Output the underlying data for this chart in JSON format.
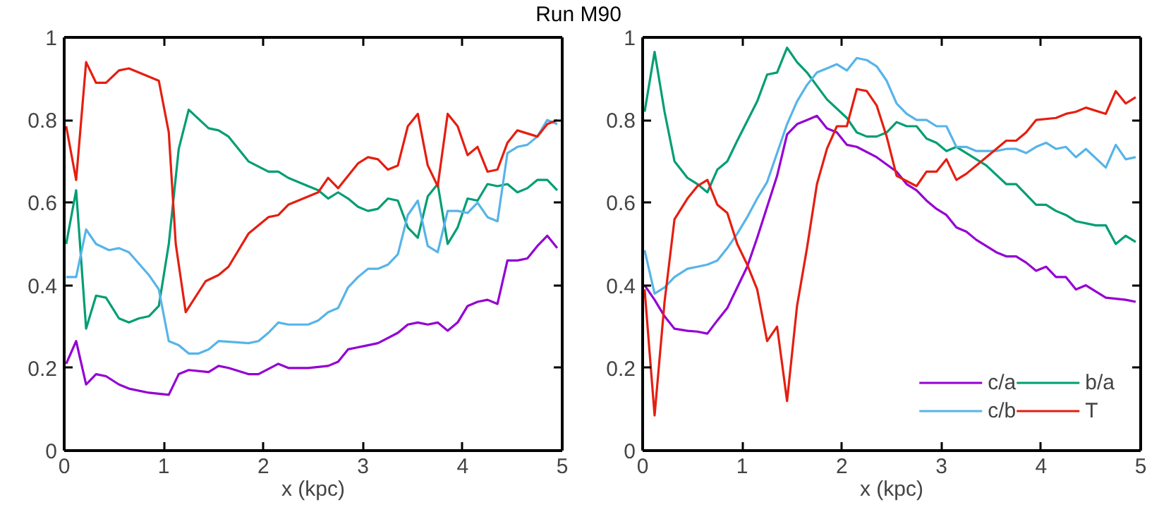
{
  "chart_data": [
    {
      "type": "line",
      "title": "Run M90",
      "xlabel": "x (kpc)",
      "xlim": [
        0,
        5
      ],
      "ylim": [
        0,
        1
      ],
      "xticks": [
        0,
        1,
        2,
        3,
        4,
        5
      ],
      "yticks": [
        0,
        0.2,
        0.4,
        0.6,
        0.8,
        1
      ],
      "grid": false,
      "legend": false,
      "series": [
        {
          "color": "#9400d3",
          "x": [
            0.02,
            0.12,
            0.22,
            0.32,
            0.42,
            0.55,
            0.65,
            0.85,
            1.05,
            1.15,
            1.25,
            1.45,
            1.55,
            1.65,
            1.85,
            1.95,
            2.15,
            2.25,
            2.45,
            2.65,
            2.75,
            2.85,
            2.95,
            3.05,
            3.15,
            3.35,
            3.45,
            3.55,
            3.65,
            3.75,
            3.85,
            3.95,
            4.05,
            4.15,
            4.25,
            4.35,
            4.45,
            4.55,
            4.65,
            4.75,
            4.85,
            4.95
          ],
          "values": [
            0.21,
            0.265,
            0.16,
            0.185,
            0.18,
            0.16,
            0.15,
            0.14,
            0.135,
            0.185,
            0.195,
            0.19,
            0.205,
            0.2,
            0.185,
            0.185,
            0.21,
            0.2,
            0.2,
            0.205,
            0.215,
            0.245,
            0.25,
            0.255,
            0.26,
            0.285,
            0.305,
            0.31,
            0.305,
            0.31,
            0.29,
            0.31,
            0.35,
            0.36,
            0.365,
            0.355,
            0.46,
            0.46,
            0.465,
            0.495,
            0.52,
            0.49
          ]
        },
        {
          "color": "#009e73",
          "x": [
            0.02,
            0.12,
            0.22,
            0.32,
            0.42,
            0.55,
            0.65,
            0.75,
            0.85,
            0.95,
            1.05,
            1.15,
            1.25,
            1.45,
            1.55,
            1.65,
            1.85,
            2.05,
            2.15,
            2.25,
            2.45,
            2.55,
            2.65,
            2.75,
            2.85,
            2.95,
            3.05,
            3.15,
            3.25,
            3.35,
            3.45,
            3.55,
            3.65,
            3.75,
            3.85,
            3.95,
            4.05,
            4.15,
            4.25,
            4.35,
            4.45,
            4.55,
            4.65,
            4.75,
            4.85,
            4.95
          ],
          "values": [
            0.5,
            0.63,
            0.295,
            0.375,
            0.37,
            0.32,
            0.31,
            0.32,
            0.325,
            0.35,
            0.5,
            0.73,
            0.825,
            0.78,
            0.775,
            0.76,
            0.7,
            0.675,
            0.675,
            0.66,
            0.64,
            0.63,
            0.61,
            0.625,
            0.61,
            0.59,
            0.58,
            0.585,
            0.61,
            0.605,
            0.54,
            0.515,
            0.615,
            0.645,
            0.5,
            0.54,
            0.61,
            0.605,
            0.645,
            0.64,
            0.645,
            0.625,
            0.635,
            0.655,
            0.655,
            0.63
          ]
        },
        {
          "color": "#56b4e9",
          "x": [
            0.02,
            0.12,
            0.22,
            0.32,
            0.45,
            0.55,
            0.65,
            0.85,
            0.95,
            1.05,
            1.15,
            1.25,
            1.35,
            1.45,
            1.55,
            1.85,
            1.95,
            2.05,
            2.15,
            2.25,
            2.45,
            2.55,
            2.65,
            2.75,
            2.85,
            2.95,
            3.05,
            3.15,
            3.25,
            3.35,
            3.45,
            3.55,
            3.65,
            3.75,
            3.85,
            3.95,
            4.05,
            4.15,
            4.25,
            4.35,
            4.45,
            4.55,
            4.65,
            4.75,
            4.85,
            4.95
          ],
          "values": [
            0.42,
            0.42,
            0.535,
            0.5,
            0.485,
            0.49,
            0.48,
            0.425,
            0.39,
            0.265,
            0.255,
            0.235,
            0.235,
            0.245,
            0.265,
            0.26,
            0.265,
            0.285,
            0.31,
            0.305,
            0.305,
            0.315,
            0.335,
            0.345,
            0.395,
            0.42,
            0.44,
            0.44,
            0.45,
            0.475,
            0.57,
            0.605,
            0.495,
            0.48,
            0.58,
            0.58,
            0.575,
            0.6,
            0.565,
            0.555,
            0.72,
            0.735,
            0.74,
            0.76,
            0.8,
            0.79
          ]
        },
        {
          "color": "#e51e10",
          "x": [
            0.02,
            0.12,
            0.22,
            0.32,
            0.42,
            0.55,
            0.65,
            0.8,
            0.95,
            1.05,
            1.12,
            1.22,
            1.42,
            1.55,
            1.65,
            1.85,
            2.05,
            2.15,
            2.25,
            2.55,
            2.65,
            2.75,
            2.95,
            3.05,
            3.15,
            3.25,
            3.35,
            3.45,
            3.55,
            3.65,
            3.75,
            3.85,
            3.95,
            4.05,
            4.15,
            4.25,
            4.35,
            4.45,
            4.55,
            4.75,
            4.85,
            4.95
          ],
          "values": [
            0.785,
            0.655,
            0.94,
            0.89,
            0.89,
            0.92,
            0.925,
            0.91,
            0.895,
            0.77,
            0.5,
            0.335,
            0.41,
            0.425,
            0.445,
            0.525,
            0.565,
            0.57,
            0.595,
            0.625,
            0.66,
            0.635,
            0.695,
            0.71,
            0.705,
            0.68,
            0.69,
            0.785,
            0.815,
            0.69,
            0.64,
            0.815,
            0.785,
            0.715,
            0.735,
            0.675,
            0.68,
            0.745,
            0.775,
            0.76,
            0.79,
            0.8
          ]
        }
      ]
    },
    {
      "type": "line",
      "xlabel": "x (kpc)",
      "xlim": [
        0,
        5
      ],
      "ylim": [
        0,
        1
      ],
      "xticks": [
        0,
        1,
        2,
        3,
        4,
        5
      ],
      "yticks": [
        0,
        0.2,
        0.4,
        0.6,
        0.8,
        1
      ],
      "grid": false,
      "legend": "bottom right",
      "series": [
        {
          "name": "c/a",
          "color": "#9400d3",
          "x": [
            0.02,
            0.12,
            0.22,
            0.32,
            0.45,
            0.55,
            0.65,
            0.75,
            0.85,
            0.95,
            1.05,
            1.15,
            1.25,
            1.35,
            1.45,
            1.55,
            1.65,
            1.75,
            1.85,
            1.95,
            2.05,
            2.15,
            2.35,
            2.55,
            2.65,
            2.75,
            2.85,
            2.95,
            3.05,
            3.15,
            3.25,
            3.35,
            3.55,
            3.65,
            3.75,
            3.85,
            3.95,
            4.05,
            4.15,
            4.25,
            4.35,
            4.45,
            4.55,
            4.65,
            4.85,
            4.95
          ],
          "values": [
            0.4,
            0.365,
            0.325,
            0.295,
            0.29,
            0.288,
            0.283,
            0.315,
            0.345,
            0.395,
            0.445,
            0.515,
            0.59,
            0.665,
            0.765,
            0.79,
            0.8,
            0.81,
            0.78,
            0.77,
            0.74,
            0.735,
            0.71,
            0.675,
            0.645,
            0.63,
            0.605,
            0.585,
            0.57,
            0.54,
            0.53,
            0.51,
            0.48,
            0.47,
            0.47,
            0.455,
            0.435,
            0.445,
            0.42,
            0.42,
            0.39,
            0.4,
            0.385,
            0.37,
            0.365,
            0.36
          ]
        },
        {
          "name": "b/a",
          "color": "#009e73",
          "x": [
            0.02,
            0.12,
            0.22,
            0.32,
            0.45,
            0.55,
            0.65,
            0.75,
            0.85,
            0.95,
            1.15,
            1.25,
            1.35,
            1.45,
            1.55,
            1.65,
            1.85,
            2.05,
            2.15,
            2.25,
            2.35,
            2.45,
            2.55,
            2.65,
            2.75,
            2.85,
            2.95,
            3.05,
            3.15,
            3.45,
            3.65,
            3.75,
            3.95,
            4.05,
            4.15,
            4.25,
            4.35,
            4.55,
            4.65,
            4.75,
            4.85,
            4.95
          ],
          "values": [
            0.82,
            0.965,
            0.82,
            0.7,
            0.66,
            0.645,
            0.625,
            0.68,
            0.7,
            0.75,
            0.845,
            0.91,
            0.915,
            0.975,
            0.94,
            0.915,
            0.85,
            0.805,
            0.77,
            0.76,
            0.76,
            0.77,
            0.795,
            0.785,
            0.785,
            0.755,
            0.745,
            0.725,
            0.735,
            0.69,
            0.645,
            0.645,
            0.595,
            0.595,
            0.58,
            0.57,
            0.555,
            0.545,
            0.545,
            0.5,
            0.52,
            0.505
          ]
        },
        {
          "name": "c/b",
          "color": "#56b4e9",
          "x": [
            0.02,
            0.12,
            0.22,
            0.32,
            0.45,
            0.55,
            0.65,
            0.75,
            0.85,
            0.95,
            1.05,
            1.15,
            1.25,
            1.35,
            1.45,
            1.55,
            1.65,
            1.75,
            1.85,
            1.95,
            2.05,
            2.15,
            2.25,
            2.35,
            2.45,
            2.55,
            2.65,
            2.75,
            2.85,
            2.95,
            3.05,
            3.15,
            3.25,
            3.35,
            3.55,
            3.65,
            3.75,
            3.85,
            3.95,
            4.05,
            4.15,
            4.25,
            4.35,
            4.45,
            4.65,
            4.75,
            4.85,
            4.95
          ],
          "values": [
            0.485,
            0.38,
            0.395,
            0.42,
            0.44,
            0.445,
            0.45,
            0.46,
            0.49,
            0.525,
            0.565,
            0.61,
            0.65,
            0.72,
            0.79,
            0.845,
            0.885,
            0.915,
            0.925,
            0.935,
            0.92,
            0.95,
            0.945,
            0.93,
            0.895,
            0.84,
            0.815,
            0.8,
            0.8,
            0.785,
            0.785,
            0.735,
            0.735,
            0.725,
            0.725,
            0.73,
            0.73,
            0.72,
            0.735,
            0.745,
            0.73,
            0.735,
            0.71,
            0.73,
            0.685,
            0.74,
            0.705,
            0.71
          ]
        },
        {
          "name": "T",
          "color": "#e51e10",
          "x": [
            0.02,
            0.12,
            0.22,
            0.32,
            0.45,
            0.55,
            0.65,
            0.75,
            0.85,
            0.95,
            1.05,
            1.15,
            1.25,
            1.35,
            1.45,
            1.55,
            1.65,
            1.75,
            1.85,
            1.95,
            2.05,
            2.15,
            2.25,
            2.35,
            2.45,
            2.55,
            2.75,
            2.85,
            2.95,
            3.05,
            3.15,
            3.25,
            3.45,
            3.65,
            3.75,
            3.85,
            3.95,
            4.15,
            4.25,
            4.35,
            4.45,
            4.65,
            4.75,
            4.85,
            4.95
          ],
          "values": [
            0.39,
            0.085,
            0.36,
            0.56,
            0.61,
            0.64,
            0.655,
            0.595,
            0.575,
            0.5,
            0.45,
            0.39,
            0.265,
            0.3,
            0.12,
            0.35,
            0.49,
            0.645,
            0.73,
            0.785,
            0.785,
            0.875,
            0.87,
            0.835,
            0.76,
            0.665,
            0.64,
            0.675,
            0.675,
            0.705,
            0.655,
            0.67,
            0.71,
            0.75,
            0.75,
            0.77,
            0.8,
            0.805,
            0.815,
            0.82,
            0.83,
            0.815,
            0.87,
            0.84,
            0.855
          ]
        }
      ]
    }
  ]
}
